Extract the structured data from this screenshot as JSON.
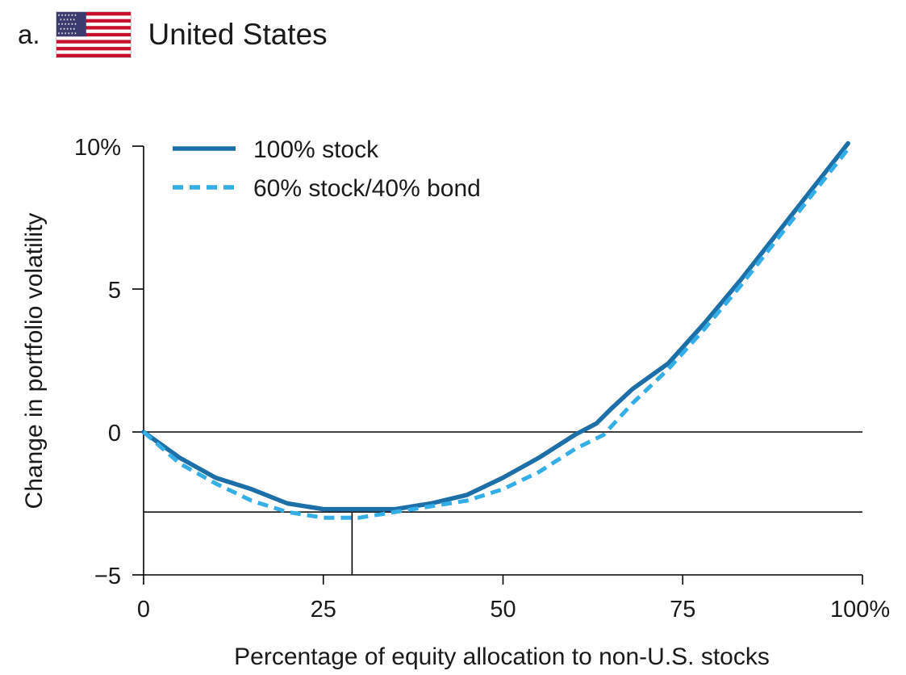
{
  "panel": {
    "letter": "a.",
    "country": "United States",
    "flag_icon": "us-flag-icon"
  },
  "colors": {
    "stock_100": "#1d6fa8",
    "stock_60_40": "#34aee6",
    "axis": "#000000",
    "text": "#1a1a1a"
  },
  "chart_data": {
    "type": "line",
    "title": "United States",
    "xlabel": "Percentage of equity allocation to non-U.S. stocks",
    "ylabel": "Change in portfolio volatility",
    "xlim": [
      0,
      100
    ],
    "ylim": [
      -5,
      10
    ],
    "x_ticks": [
      0,
      25,
      50,
      75,
      100
    ],
    "x_tick_labels": [
      "0",
      "25",
      "50",
      "75",
      "100%"
    ],
    "y_ticks": [
      10,
      5,
      0,
      -5
    ],
    "y_tick_labels": [
      "10%",
      "5",
      "0",
      "−5"
    ],
    "legend_position": "top-left",
    "series": [
      {
        "name": "100% stock",
        "style": "solid",
        "x": [
          0,
          5,
          10,
          15,
          20,
          25,
          30,
          35,
          40,
          45,
          50,
          55,
          60,
          63,
          65,
          68,
          73,
          78,
          83,
          88,
          93,
          98
        ],
        "y": [
          0,
          -0.9,
          -1.6,
          -2.0,
          -2.5,
          -2.7,
          -2.7,
          -2.7,
          -2.5,
          -2.2,
          -1.6,
          -0.9,
          -0.1,
          0.3,
          0.8,
          1.5,
          2.4,
          3.8,
          5.3,
          6.9,
          8.5,
          10.1
        ]
      },
      {
        "name": "60% stock/40% bond",
        "style": "dashed",
        "x": [
          0,
          5,
          10,
          15,
          20,
          25,
          30,
          35,
          40,
          45,
          50,
          55,
          60,
          64,
          68,
          73,
          78,
          83,
          88,
          93,
          98
        ],
        "y": [
          0,
          -1.1,
          -1.8,
          -2.4,
          -2.8,
          -3.0,
          -3.0,
          -2.8,
          -2.6,
          -2.4,
          -2.0,
          -1.4,
          -0.6,
          -0.1,
          1.0,
          2.2,
          3.6,
          5.1,
          6.7,
          8.3,
          9.9
        ]
      }
    ],
    "reference_lines": [
      {
        "type": "horizontal",
        "y": 0
      },
      {
        "type": "horizontal",
        "y": -2.8
      },
      {
        "type": "vertical",
        "x": 29,
        "y_from": -5,
        "y_to": -2.8
      }
    ]
  }
}
